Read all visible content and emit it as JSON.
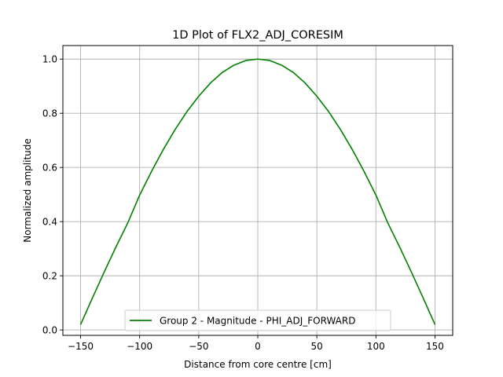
{
  "chart_data": {
    "type": "line",
    "title": "1D Plot of FLX2_ADJ_CORESIM",
    "xlabel": "Distance from core centre [cm]",
    "ylabel": "Normalized amplitude",
    "xlim": [
      -165,
      165
    ],
    "ylim": [
      -0.02,
      1.05
    ],
    "xticks": [
      -150,
      -100,
      -50,
      0,
      50,
      100,
      150
    ],
    "xtick_labels": [
      "−150",
      "−100",
      "−50",
      "0",
      "50",
      "100",
      "150"
    ],
    "yticks": [
      0.0,
      0.2,
      0.4,
      0.6,
      0.8,
      1.0
    ],
    "ytick_labels": [
      "0.0",
      "0.2",
      "0.4",
      "0.6",
      "0.8",
      "1.0"
    ],
    "grid": true,
    "legend_position": "bottom-center",
    "series": [
      {
        "name": "Group 2 - Magnitude - PHI_ADJ_FORWARD",
        "color": "#008000",
        "x": [
          -150,
          -140,
          -130,
          -120,
          -110,
          -100,
          -90,
          -80,
          -70,
          -60,
          -50,
          -40,
          -30,
          -20,
          -10,
          0,
          10,
          20,
          30,
          40,
          50,
          60,
          70,
          80,
          90,
          100,
          110,
          120,
          130,
          140,
          150
        ],
        "values": [
          0.02,
          0.118,
          0.214,
          0.307,
          0.396,
          0.498,
          0.585,
          0.666,
          0.74,
          0.806,
          0.863,
          0.912,
          0.951,
          0.978,
          0.995,
          1.0,
          0.995,
          0.978,
          0.951,
          0.912,
          0.863,
          0.806,
          0.74,
          0.666,
          0.585,
          0.498,
          0.396,
          0.307,
          0.214,
          0.118,
          0.02
        ]
      }
    ]
  }
}
